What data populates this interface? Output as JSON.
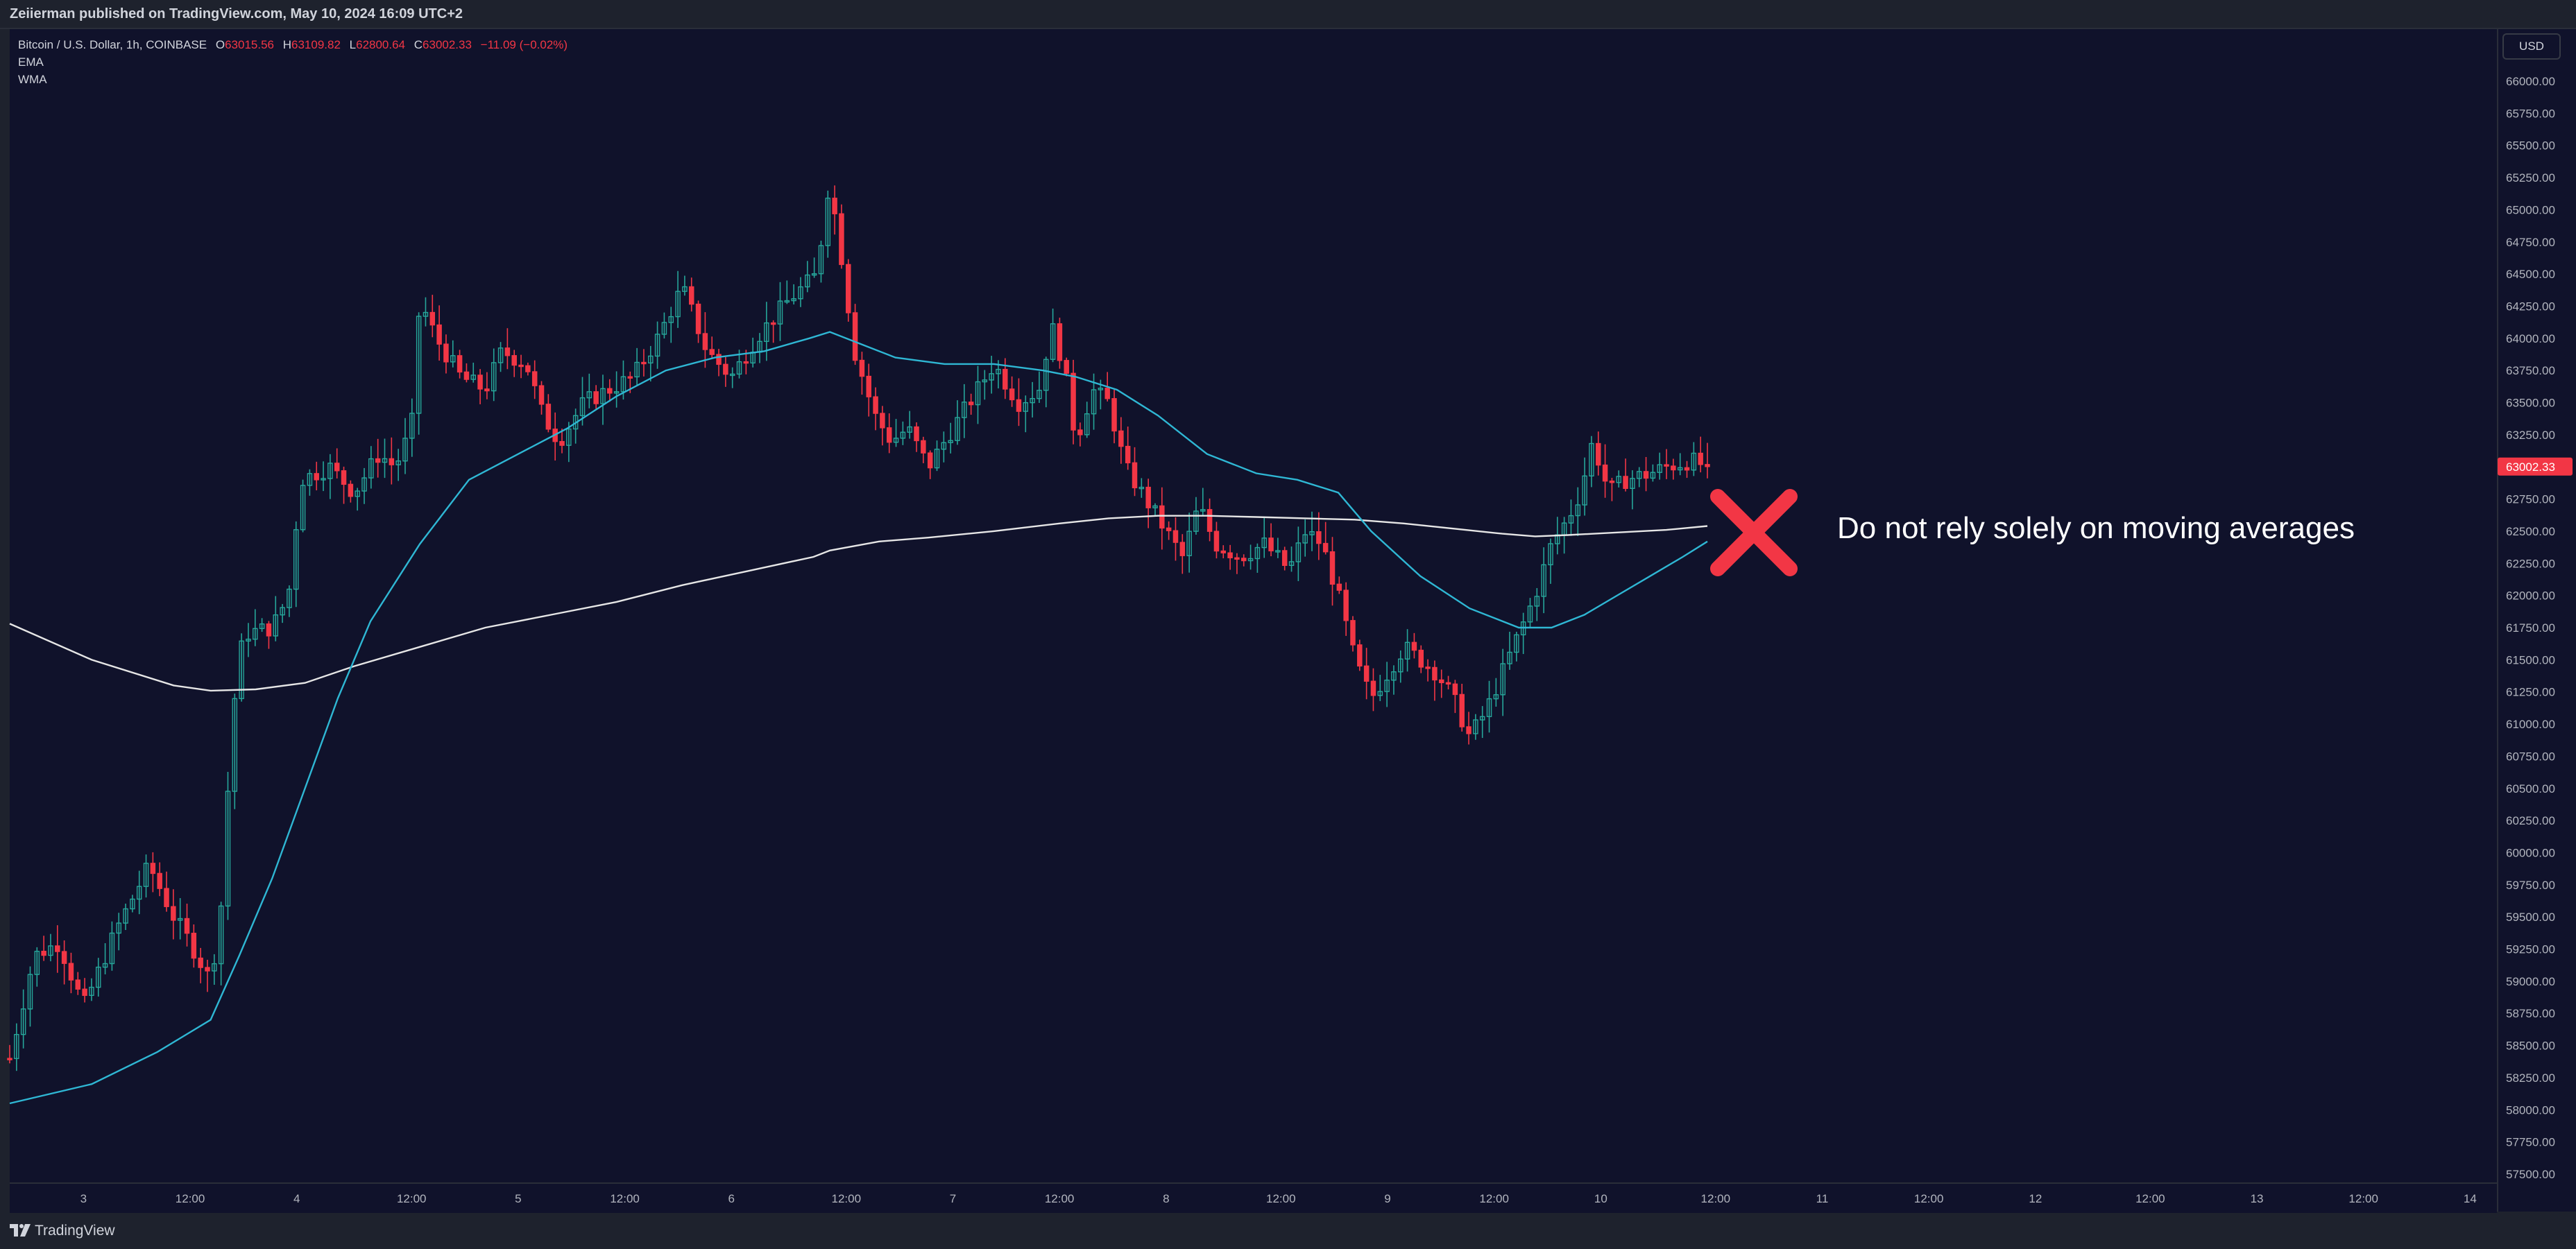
{
  "header": {
    "publish_line": "Zeiierman published on TradingView.com, May 10, 2024 16:09 UTC+2"
  },
  "legend": {
    "symbol": "Bitcoin / U.S. Dollar, 1h, COINBASE",
    "open_label": "O",
    "open": "63015.56",
    "high_label": "H",
    "high": "63109.82",
    "low_label": "L",
    "low": "62800.64",
    "close_label": "C",
    "close": "63002.33",
    "change": "−11.09 (−0.02%)",
    "indicators": [
      "EMA",
      "WMA"
    ]
  },
  "currency": "USD",
  "annotation": {
    "text": "Do not rely solely on moving averages",
    "icon": "x-mark-icon",
    "color": "#f23645"
  },
  "footer": {
    "brand": "TradingView"
  },
  "colors": {
    "background": "#10122b",
    "up": "#26a69a",
    "down": "#f23645",
    "ema": "#2fb7d4",
    "wma": "#e6e6e6",
    "last_price_bg": "#f23645"
  },
  "chart_data": {
    "type": "candlestick",
    "symbol": "BTCUSD",
    "interval": "1h",
    "ylim": [
      57500,
      66250
    ],
    "y_ticks": [
      "57500.00",
      "57750.00",
      "58000.00",
      "58250.00",
      "58500.00",
      "58750.00",
      "59000.00",
      "59250.00",
      "59500.00",
      "59750.00",
      "60000.00",
      "60250.00",
      "60500.00",
      "60750.00",
      "61000.00",
      "61250.00",
      "61500.00",
      "61750.00",
      "62000.00",
      "62250.00",
      "62500.00",
      "62750.00",
      "63000.00",
      "63250.00",
      "63500.00",
      "63750.00",
      "64000.00",
      "64250.00",
      "64500.00",
      "64750.00",
      "65000.00",
      "65250.00",
      "65500.00",
      "65750.00",
      "66000.00"
    ],
    "x_ticks": [
      {
        "label": "3",
        "t": 0.09
      },
      {
        "label": "12:00",
        "t": 0.22
      },
      {
        "label": "4",
        "t": 0.35
      },
      {
        "label": "12:00",
        "t": 0.49
      },
      {
        "label": "5",
        "t": 0.62
      },
      {
        "label": "12:00",
        "t": 0.75
      },
      {
        "label": "6",
        "t": 0.88
      },
      {
        "label": "12:00",
        "t": 1.02
      },
      {
        "label": "7",
        "t": 1.15
      },
      {
        "label": "12:00",
        "t": 1.28
      },
      {
        "label": "8",
        "t": 1.41
      },
      {
        "label": "12:00",
        "t": 1.55
      },
      {
        "label": "9",
        "t": 1.68
      },
      {
        "label": "12:00",
        "t": 1.81
      },
      {
        "label": "10",
        "t": 1.94
      },
      {
        "label": "12:00",
        "t": 2.08
      },
      {
        "label": "11",
        "t": 2.21
      },
      {
        "label": "12:00",
        "t": 2.34
      },
      {
        "label": "12",
        "t": 2.47
      },
      {
        "label": "12:00",
        "t": 2.61
      },
      {
        "label": "13",
        "t": 2.74
      },
      {
        "label": "12:00",
        "t": 2.87
      },
      {
        "label": "14",
        "t": 3.0
      }
    ],
    "t_range": [
      0,
      3.11
    ],
    "last_price": "63002.33",
    "price_anchors": [
      [
        0,
        58400
      ],
      [
        0.03,
        59200
      ],
      [
        0.06,
        59300
      ],
      [
        0.09,
        58800
      ],
      [
        0.13,
        59400
      ],
      [
        0.17,
        59900
      ],
      [
        0.2,
        59500
      ],
      [
        0.22,
        59300
      ],
      [
        0.245,
        59000
      ],
      [
        0.26,
        59700
      ],
      [
        0.27,
        61000
      ],
      [
        0.285,
        61700
      ],
      [
        0.32,
        61750
      ],
      [
        0.34,
        62000
      ],
      [
        0.355,
        62900
      ],
      [
        0.39,
        63000
      ],
      [
        0.42,
        62800
      ],
      [
        0.45,
        63100
      ],
      [
        0.47,
        63000
      ],
      [
        0.49,
        63300
      ],
      [
        0.5,
        64300
      ],
      [
        0.52,
        64000
      ],
      [
        0.55,
        63700
      ],
      [
        0.58,
        63600
      ],
      [
        0.6,
        63900
      ],
      [
        0.63,
        63800
      ],
      [
        0.65,
        63400
      ],
      [
        0.67,
        63200
      ],
      [
        0.7,
        63500
      ],
      [
        0.73,
        63600
      ],
      [
        0.76,
        63700
      ],
      [
        0.79,
        64000
      ],
      [
        0.82,
        64400
      ],
      [
        0.85,
        63900
      ],
      [
        0.88,
        63700
      ],
      [
        0.91,
        64000
      ],
      [
        0.95,
        64300
      ],
      [
        0.985,
        64500
      ],
      [
        0.995,
        65100
      ],
      [
        1.0,
        65200
      ],
      [
        1.015,
        64600
      ],
      [
        1.03,
        63900
      ],
      [
        1.055,
        63400
      ],
      [
        1.075,
        63200
      ],
      [
        1.095,
        63300
      ],
      [
        1.12,
        63000
      ],
      [
        1.14,
        63200
      ],
      [
        1.17,
        63500
      ],
      [
        1.2,
        63800
      ],
      [
        1.23,
        63500
      ],
      [
        1.255,
        63600
      ],
      [
        1.27,
        64100
      ],
      [
        1.285,
        63800
      ],
      [
        1.3,
        63200
      ],
      [
        1.32,
        63600
      ],
      [
        1.34,
        63500
      ],
      [
        1.36,
        63000
      ],
      [
        1.38,
        62800
      ],
      [
        1.41,
        62500
      ],
      [
        1.43,
        62300
      ],
      [
        1.45,
        62700
      ],
      [
        1.47,
        62400
      ],
      [
        1.5,
        62300
      ],
      [
        1.53,
        62400
      ],
      [
        1.56,
        62200
      ],
      [
        1.58,
        62500
      ],
      [
        1.6,
        62400
      ],
      [
        1.62,
        62000
      ],
      [
        1.64,
        61500
      ],
      [
        1.66,
        61200
      ],
      [
        1.68,
        61400
      ],
      [
        1.7,
        61600
      ],
      [
        1.72,
        61500
      ],
      [
        1.74,
        61400
      ],
      [
        1.76,
        61200
      ],
      [
        1.78,
        60900
      ],
      [
        1.8,
        61100
      ],
      [
        1.82,
        61400
      ],
      [
        1.84,
        61700
      ],
      [
        1.86,
        62000
      ],
      [
        1.88,
        62400
      ],
      [
        1.9,
        62600
      ],
      [
        1.915,
        62800
      ],
      [
        1.93,
        63200
      ],
      [
        1.95,
        62800
      ],
      [
        1.97,
        62900
      ],
      [
        2.0,
        62950
      ],
      [
        2.02,
        63000
      ],
      [
        2.05,
        63050
      ],
      [
        2.07,
        63002
      ]
    ],
    "ema_anchors": [
      [
        0,
        58050
      ],
      [
        0.1,
        58200
      ],
      [
        0.18,
        58450
      ],
      [
        0.245,
        58700
      ],
      [
        0.28,
        59200
      ],
      [
        0.32,
        59800
      ],
      [
        0.36,
        60500
      ],
      [
        0.4,
        61200
      ],
      [
        0.44,
        61800
      ],
      [
        0.5,
        62400
      ],
      [
        0.56,
        62900
      ],
      [
        0.62,
        63100
      ],
      [
        0.68,
        63300
      ],
      [
        0.74,
        63550
      ],
      [
        0.8,
        63750
      ],
      [
        0.86,
        63850
      ],
      [
        0.92,
        63900
      ],
      [
        0.975,
        64000
      ],
      [
        1.0,
        64050
      ],
      [
        1.04,
        63950
      ],
      [
        1.08,
        63850
      ],
      [
        1.14,
        63800
      ],
      [
        1.2,
        63800
      ],
      [
        1.26,
        63750
      ],
      [
        1.3,
        63700
      ],
      [
        1.35,
        63600
      ],
      [
        1.4,
        63400
      ],
      [
        1.46,
        63100
      ],
      [
        1.52,
        62950
      ],
      [
        1.57,
        62900
      ],
      [
        1.62,
        62800
      ],
      [
        1.66,
        62500
      ],
      [
        1.72,
        62150
      ],
      [
        1.78,
        61900
      ],
      [
        1.84,
        61750
      ],
      [
        1.88,
        61750
      ],
      [
        1.92,
        61850
      ],
      [
        1.96,
        62000
      ],
      [
        2.0,
        62150
      ],
      [
        2.04,
        62300
      ],
      [
        2.07,
        62420
      ]
    ],
    "wma_anchors": [
      [
        0,
        61780
      ],
      [
        0.1,
        61500
      ],
      [
        0.2,
        61300
      ],
      [
        0.245,
        61260
      ],
      [
        0.3,
        61270
      ],
      [
        0.36,
        61320
      ],
      [
        0.42,
        61450
      ],
      [
        0.5,
        61600
      ],
      [
        0.58,
        61750
      ],
      [
        0.66,
        61850
      ],
      [
        0.74,
        61950
      ],
      [
        0.82,
        62080
      ],
      [
        0.9,
        62190
      ],
      [
        0.98,
        62300
      ],
      [
        1.0,
        62350
      ],
      [
        1.06,
        62420
      ],
      [
        1.12,
        62450
      ],
      [
        1.2,
        62500
      ],
      [
        1.28,
        62560
      ],
      [
        1.34,
        62600
      ],
      [
        1.4,
        62620
      ],
      [
        1.46,
        62620
      ],
      [
        1.52,
        62610
      ],
      [
        1.58,
        62600
      ],
      [
        1.64,
        62590
      ],
      [
        1.7,
        62560
      ],
      [
        1.76,
        62520
      ],
      [
        1.82,
        62480
      ],
      [
        1.86,
        62460
      ],
      [
        1.9,
        62470
      ],
      [
        1.96,
        62490
      ],
      [
        2.02,
        62510
      ],
      [
        2.07,
        62540
      ]
    ]
  }
}
